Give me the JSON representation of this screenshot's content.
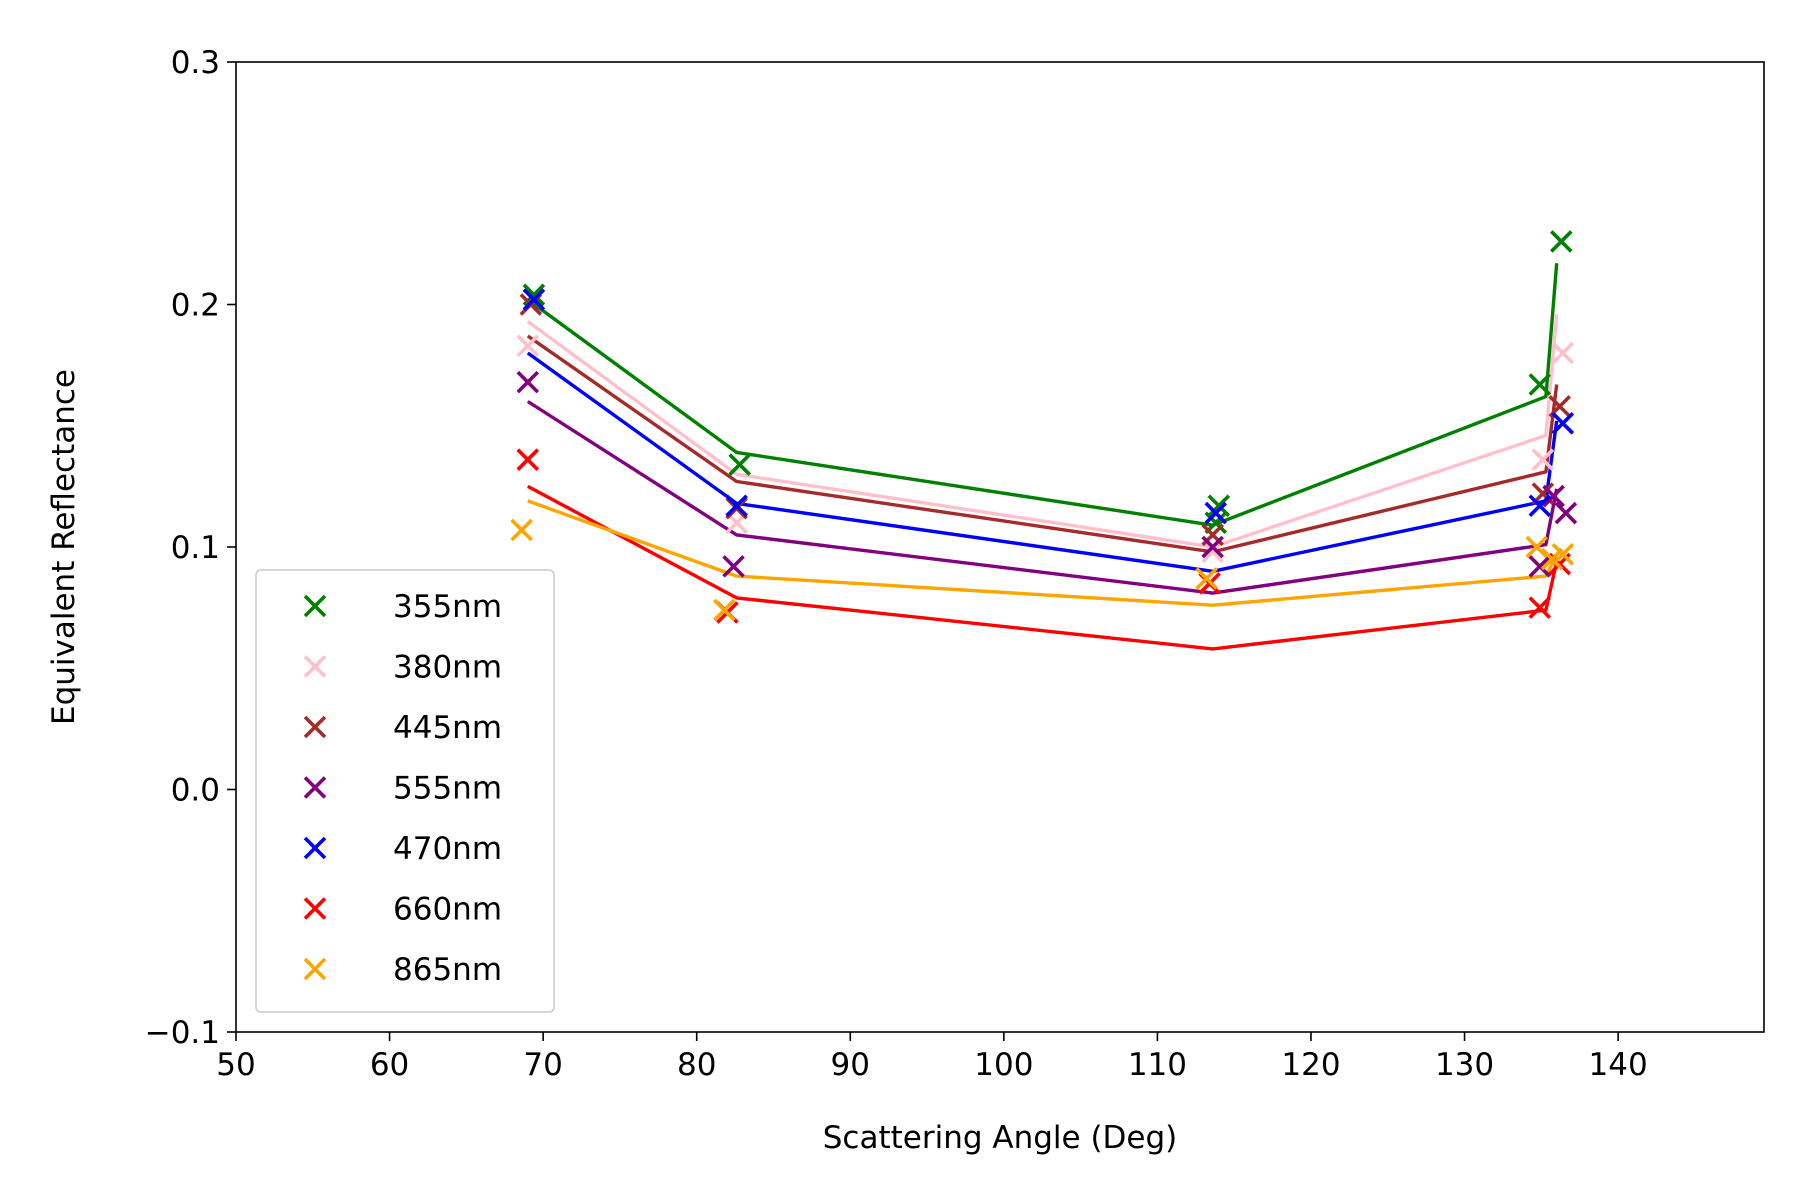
{
  "chart_data": {
    "type": "scatter",
    "title": "",
    "xlabel": "Scattering Angle (Deg)",
    "ylabel": "Equivalent Reflectance",
    "xlim": [
      50,
      149.5
    ],
    "ylim": [
      -0.1,
      0.3
    ],
    "xticks": [
      50,
      60,
      70,
      80,
      90,
      100,
      110,
      120,
      130,
      140
    ],
    "xtick_labels": [
      "50",
      "60",
      "70",
      "80",
      "90",
      "100",
      "110",
      "120",
      "130",
      "140"
    ],
    "yticks": [
      -0.1,
      0.0,
      0.1,
      0.2,
      0.3
    ],
    "ytick_labels": [
      "−0.1",
      "0.0",
      "0.1",
      "0.2",
      "0.3"
    ],
    "grid": false,
    "legend_position": "lower-left",
    "series": [
      {
        "name": "355nm",
        "color": "#008000",
        "points": [
          {
            "x": 69.4,
            "y": 0.204
          },
          {
            "x": 82.8,
            "y": 0.134
          },
          {
            "x": 114.0,
            "y": 0.117
          },
          {
            "x": 113.8,
            "y": 0.11
          },
          {
            "x": 134.9,
            "y": 0.167
          },
          {
            "x": 136.3,
            "y": 0.226
          }
        ],
        "line": [
          {
            "x": 69.0,
            "y": 0.202
          },
          {
            "x": 82.6,
            "y": 0.139
          },
          {
            "x": 113.6,
            "y": 0.109
          },
          {
            "x": 135.3,
            "y": 0.162
          },
          {
            "x": 136.0,
            "y": 0.217
          }
        ]
      },
      {
        "name": "380nm",
        "color": "#ffc0cb",
        "points": [
          {
            "x": 69.0,
            "y": 0.183
          },
          {
            "x": 82.6,
            "y": 0.11
          },
          {
            "x": 113.6,
            "y": 0.098
          },
          {
            "x": 135.1,
            "y": 0.136
          },
          {
            "x": 136.4,
            "y": 0.18
          }
        ],
        "line": [
          {
            "x": 69.0,
            "y": 0.193
          },
          {
            "x": 82.6,
            "y": 0.13
          },
          {
            "x": 113.6,
            "y": 0.1
          },
          {
            "x": 135.3,
            "y": 0.146
          },
          {
            "x": 136.0,
            "y": 0.196
          }
        ]
      },
      {
        "name": "445nm",
        "color": "#a52a2a",
        "points": [
          {
            "x": 69.2,
            "y": 0.2
          },
          {
            "x": 82.6,
            "y": 0.116
          },
          {
            "x": 113.6,
            "y": 0.105
          },
          {
            "x": 135.1,
            "y": 0.122
          },
          {
            "x": 136.2,
            "y": 0.158
          }
        ],
        "line": [
          {
            "x": 69.0,
            "y": 0.187
          },
          {
            "x": 82.6,
            "y": 0.127
          },
          {
            "x": 113.6,
            "y": 0.098
          },
          {
            "x": 135.3,
            "y": 0.131
          },
          {
            "x": 136.0,
            "y": 0.167
          }
        ]
      },
      {
        "name": "555nm",
        "color": "#800080",
        "points": [
          {
            "x": 69.0,
            "y": 0.168
          },
          {
            "x": 82.4,
            "y": 0.092
          },
          {
            "x": 113.6,
            "y": 0.1
          },
          {
            "x": 134.9,
            "y": 0.092
          },
          {
            "x": 135.8,
            "y": 0.121
          },
          {
            "x": 136.6,
            "y": 0.114
          }
        ],
        "line": [
          {
            "x": 69.0,
            "y": 0.16
          },
          {
            "x": 82.6,
            "y": 0.105
          },
          {
            "x": 113.6,
            "y": 0.081
          },
          {
            "x": 135.3,
            "y": 0.101
          },
          {
            "x": 136.0,
            "y": 0.124
          }
        ]
      },
      {
        "name": "470nm",
        "color": "#0000ff",
        "points": [
          {
            "x": 69.4,
            "y": 0.202
          },
          {
            "x": 82.6,
            "y": 0.117
          },
          {
            "x": 113.8,
            "y": 0.114
          },
          {
            "x": 134.9,
            "y": 0.117
          },
          {
            "x": 136.4,
            "y": 0.151
          }
        ],
        "line": [
          {
            "x": 69.0,
            "y": 0.18
          },
          {
            "x": 82.6,
            "y": 0.118
          },
          {
            "x": 113.6,
            "y": 0.09
          },
          {
            "x": 135.3,
            "y": 0.119
          },
          {
            "x": 136.0,
            "y": 0.152
          }
        ]
      },
      {
        "name": "660nm",
        "color": "#ff0000",
        "points": [
          {
            "x": 69.0,
            "y": 0.136
          },
          {
            "x": 82.0,
            "y": 0.073
          },
          {
            "x": 113.4,
            "y": 0.085
          },
          {
            "x": 134.9,
            "y": 0.075
          },
          {
            "x": 136.2,
            "y": 0.093
          }
        ],
        "line": [
          {
            "x": 69.0,
            "y": 0.125
          },
          {
            "x": 82.6,
            "y": 0.079
          },
          {
            "x": 113.6,
            "y": 0.058
          },
          {
            "x": 135.3,
            "y": 0.074
          },
          {
            "x": 136.0,
            "y": 0.094
          }
        ]
      },
      {
        "name": "865nm",
        "color": "#ffa500",
        "points": [
          {
            "x": 68.6,
            "y": 0.107
          },
          {
            "x": 81.8,
            "y": 0.074
          },
          {
            "x": 113.2,
            "y": 0.087
          },
          {
            "x": 134.7,
            "y": 0.1
          },
          {
            "x": 135.7,
            "y": 0.095
          },
          {
            "x": 136.4,
            "y": 0.097
          }
        ],
        "line": [
          {
            "x": 69.0,
            "y": 0.119
          },
          {
            "x": 82.6,
            "y": 0.088
          },
          {
            "x": 113.6,
            "y": 0.076
          },
          {
            "x": 135.3,
            "y": 0.088
          },
          {
            "x": 136.0,
            "y": 0.097
          }
        ]
      }
    ]
  }
}
